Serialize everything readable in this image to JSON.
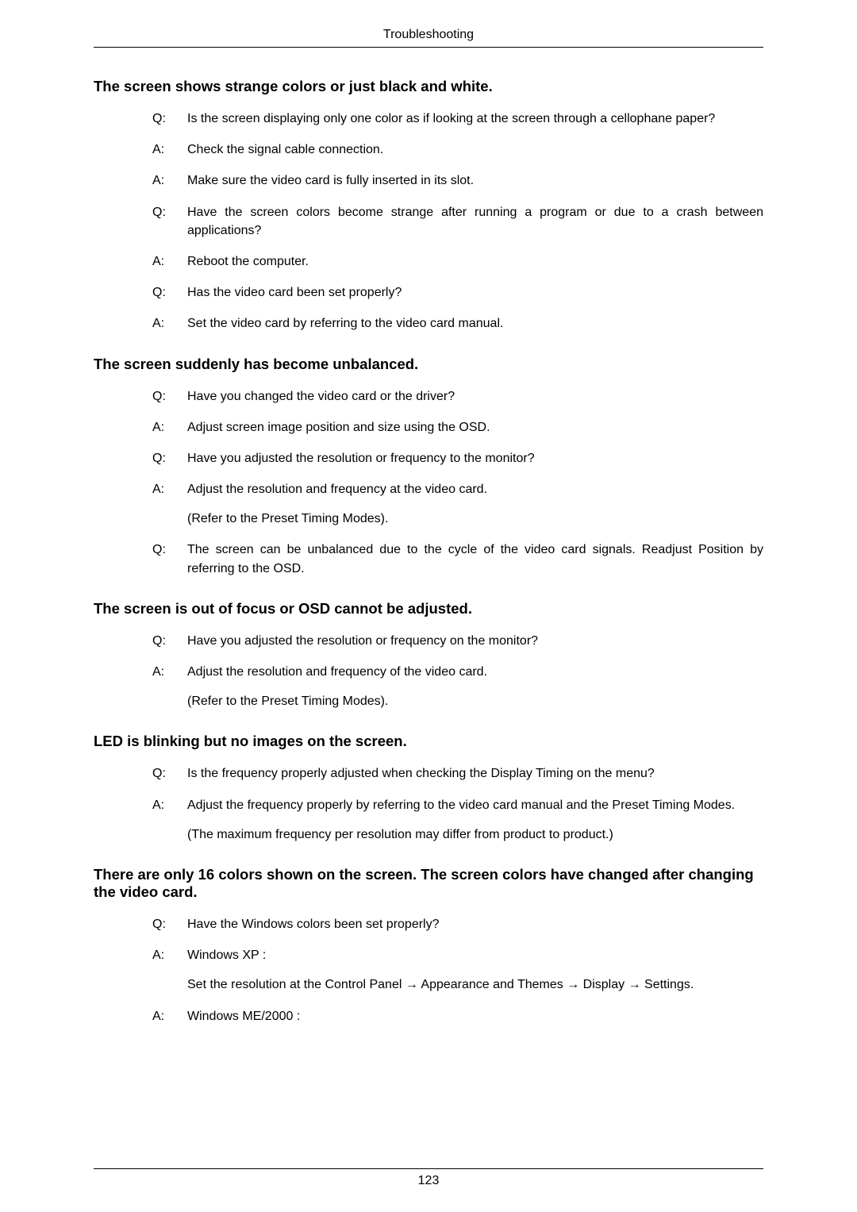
{
  "header": "Troubleshooting",
  "pageNumber": "123",
  "sections": [
    {
      "heading": "The screen shows strange colors or just black and white.",
      "items": [
        {
          "label": "Q:",
          "paras": [
            "Is the screen displaying only one color as if looking at the screen through a cellophane paper?"
          ]
        },
        {
          "label": "A:",
          "paras": [
            "Check the signal cable connection."
          ]
        },
        {
          "label": "A:",
          "paras": [
            "Make sure the video card is fully inserted in its slot."
          ]
        },
        {
          "label": "Q:",
          "paras": [
            "Have the screen colors become strange after running a program or due to a crash between applications?"
          ]
        },
        {
          "label": "A:",
          "paras": [
            "Reboot the computer."
          ]
        },
        {
          "label": "Q:",
          "paras": [
            "Has the video card been set properly?"
          ]
        },
        {
          "label": "A:",
          "paras": [
            "Set the video card by referring to the video card manual."
          ]
        }
      ]
    },
    {
      "heading": "The screen suddenly has become unbalanced.",
      "items": [
        {
          "label": "Q:",
          "paras": [
            "Have you changed the video card or the driver?"
          ]
        },
        {
          "label": "A:",
          "paras": [
            "Adjust screen image position and size using the OSD."
          ]
        },
        {
          "label": "Q:",
          "paras": [
            "Have you adjusted the resolution or frequency to the monitor?"
          ]
        },
        {
          "label": "A:",
          "paras": [
            "Adjust the resolution and frequency at the video card.",
            "(Refer to the Preset Timing Modes)."
          ]
        },
        {
          "label": "Q:",
          "paras": [
            "The screen can be unbalanced due to the cycle of the video card signals. Readjust Position by referring to the OSD."
          ]
        }
      ]
    },
    {
      "heading": "The screen is out of focus or OSD cannot be adjusted.",
      "items": [
        {
          "label": "Q:",
          "paras": [
            "Have you adjusted the resolution or frequency on the monitor?"
          ]
        },
        {
          "label": "A:",
          "paras": [
            "Adjust the resolution and frequency of the video card.",
            "(Refer to the Preset Timing Modes)."
          ]
        }
      ]
    },
    {
      "heading": "LED is blinking but no images on the screen.",
      "items": [
        {
          "label": "Q:",
          "paras": [
            "Is the frequency properly adjusted when checking the Display Timing on the menu?"
          ]
        },
        {
          "label": "A:",
          "paras": [
            "Adjust the frequency properly by referring to the video card manual and the Preset Timing Modes.",
            "(The maximum frequency per resolution may differ from product to product.)"
          ]
        }
      ]
    },
    {
      "heading": "There are only 16 colors shown on the screen. The screen colors have changed after changing the video card.",
      "items": [
        {
          "label": "Q:",
          "paras": [
            "Have the Windows colors been set properly?"
          ]
        },
        {
          "label": "A:",
          "paras": [
            "Windows XP :",
            "Set the resolution at the Control Panel → Appearance and Themes → Display → Settings."
          ]
        },
        {
          "label": "A:",
          "paras": [
            "Windows ME/2000 :"
          ]
        }
      ]
    }
  ]
}
